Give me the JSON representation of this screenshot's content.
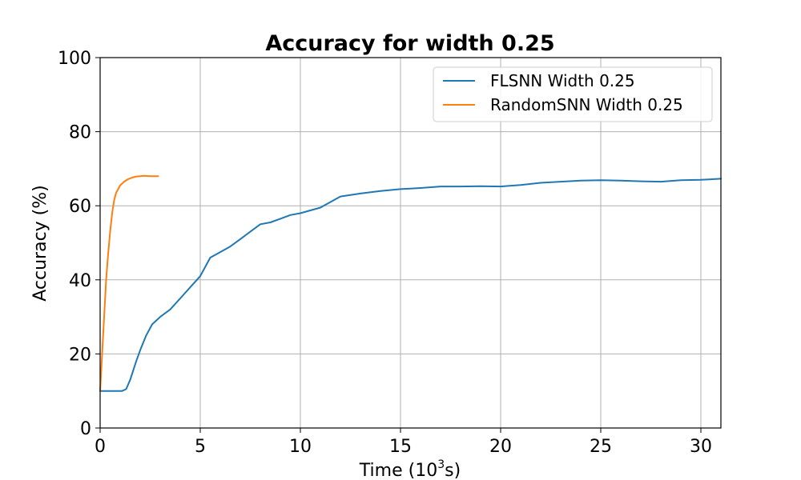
{
  "chart_data": {
    "type": "line",
    "title": "Accuracy for width 0.25",
    "xlabel": "Time (10",
    "xlabel_sup": "3",
    "xlabel_suffix": "s)",
    "ylabel": "Accuracy (%)",
    "xlim": [
      0,
      31
    ],
    "ylim": [
      0,
      100
    ],
    "xticks": [
      0,
      5,
      10,
      15,
      20,
      25,
      30
    ],
    "yticks": [
      0,
      20,
      40,
      60,
      80,
      100
    ],
    "grid": true,
    "legend_position": "top-right",
    "series": [
      {
        "name": "FLSNN Width 0.25",
        "color": "#1f77b4",
        "x": [
          0,
          1.1,
          1.3,
          1.5,
          1.8,
          2.0,
          2.3,
          2.6,
          3.0,
          3.5,
          4.0,
          4.5,
          5.0,
          5.5,
          6.0,
          6.5,
          7.0,
          7.5,
          8.0,
          8.5,
          9.0,
          9.5,
          10.0,
          11.0,
          12.0,
          13.0,
          14.0,
          15.0,
          16.0,
          17.0,
          18.0,
          19.0,
          20.0,
          21.0,
          22.0,
          23.0,
          24.0,
          25.0,
          26.0,
          27.0,
          28.0,
          29.0,
          30.0,
          31.0
        ],
        "y": [
          10,
          10,
          10.5,
          13,
          18,
          21,
          25,
          28,
          30,
          32,
          35,
          38,
          41,
          46,
          47.5,
          49,
          51,
          53,
          55,
          55.5,
          56.5,
          57.5,
          58,
          59.5,
          62.5,
          63.3,
          64,
          64.5,
          64.8,
          65.2,
          65.2,
          65.3,
          65.2,
          65.6,
          66.2,
          66.5,
          66.8,
          66.9,
          66.8,
          66.6,
          66.5,
          66.9,
          67,
          67.3
        ]
      },
      {
        "name": "RandomSNN Width 0.25",
        "color": "#ff7f0e",
        "x": [
          0,
          0.1,
          0.2,
          0.3,
          0.4,
          0.5,
          0.6,
          0.7,
          0.8,
          0.9,
          1.0,
          1.2,
          1.4,
          1.6,
          1.8,
          2.0,
          2.2,
          2.5,
          2.8,
          2.9
        ],
        "y": [
          10,
          20,
          30,
          40,
          47,
          53,
          58,
          61.5,
          63.5,
          64.5,
          65.5,
          66.5,
          67.2,
          67.6,
          67.9,
          68,
          68.1,
          68,
          68,
          68
        ]
      }
    ]
  }
}
